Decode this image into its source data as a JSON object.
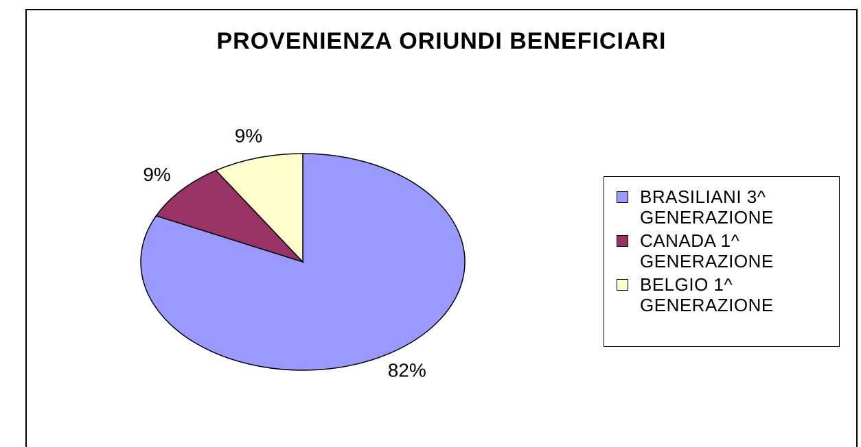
{
  "chart_data": {
    "type": "pie",
    "title": "PROVENIENZA ORIUNDI BENEFICIARI",
    "categories": [
      "BRASILIANI 3^ GENERAZIONE",
      "CANADA 1^ GENERAZIONE",
      "BELGIO 1^ GENERAZIONE"
    ],
    "values": [
      82,
      9,
      9
    ],
    "value_labels": [
      "82%",
      "9%",
      "9%"
    ],
    "colors": [
      "#9999ff",
      "#993366",
      "#ffffcc"
    ],
    "legend": "right"
  }
}
